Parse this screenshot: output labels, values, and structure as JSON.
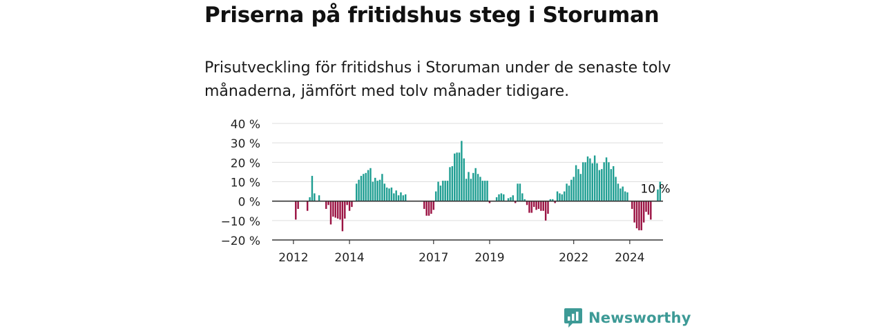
{
  "title": "Priserna på fritidshus steg i Storuman",
  "subtitle": "Prisutveckling för fritidshus i Storuman under de senaste tolv månaderna, jämfört med tolv månader tidigare.",
  "brand": {
    "name": "Newsworthy",
    "icon": "newsworthy-logo-icon"
  },
  "colors": {
    "positive": "#1f9e92",
    "negative": "#9b1444",
    "brand": "#3d9a96"
  },
  "chart_data": {
    "type": "bar",
    "title": "Priserna på fritidshus steg i Storuman",
    "xlabel": "",
    "ylabel": "",
    "ylim": [
      -20,
      40
    ],
    "yticks": [
      40,
      30,
      20,
      10,
      0,
      -10,
      -20
    ],
    "ytick_labels": [
      "40 %",
      "30 %",
      "20 %",
      "10 %",
      "0 %",
      "−10 %",
      "−20 %"
    ],
    "x_start": "2011-11",
    "frequency": "monthly",
    "xticks": [
      {
        "label": "2012",
        "date": "2012-06"
      },
      {
        "label": "2014",
        "date": "2014-06"
      },
      {
        "label": "2017",
        "date": "2017-06"
      },
      {
        "label": "2019",
        "date": "2019-06"
      },
      {
        "label": "2022",
        "date": "2022-06"
      },
      {
        "label": "2024",
        "date": "2024-06"
      }
    ],
    "annotation": {
      "text": "10 %",
      "date": "2025-05"
    },
    "values": [
      null,
      null,
      null,
      null,
      null,
      null,
      null,
      null,
      -9.5,
      -4,
      null,
      null,
      null,
      -5,
      2,
      13,
      4,
      null,
      3,
      null,
      null,
      -4,
      -2,
      -12,
      -8,
      -8.5,
      -9,
      -9.5,
      -15.5,
      -9,
      -2,
      -5,
      -3,
      null,
      9,
      11,
      13,
      14,
      14.5,
      16,
      17,
      10,
      12,
      10.5,
      11,
      14,
      9,
      7,
      6.5,
      7,
      4,
      5.5,
      3,
      4.5,
      3,
      3.5,
      null,
      null,
      null,
      null,
      null,
      null,
      null,
      -4,
      -7.5,
      -7.5,
      -6.5,
      -4.5,
      5,
      10,
      8,
      10.5,
      10.5,
      10.5,
      17.5,
      18,
      24.5,
      25,
      25,
      31,
      22,
      11.5,
      15,
      11.5,
      14.5,
      17,
      14,
      12.5,
      10.5,
      10.5,
      10.5,
      -1,
      null,
      null,
      2,
      3.5,
      4,
      3.5,
      null,
      1.5,
      2,
      3,
      -1,
      9,
      9,
      4,
      1,
      -2,
      -6,
      -6,
      -3,
      -4.5,
      -4,
      -5,
      -5,
      -10,
      -6.5,
      1,
      1,
      -1,
      5,
      4,
      3.5,
      5,
      9,
      8,
      11,
      12.5,
      18.5,
      16.5,
      14,
      20,
      20,
      23,
      22,
      19.5,
      23.5,
      19.5,
      16,
      16.5,
      20,
      22.5,
      20,
      16.5,
      18,
      12.5,
      9,
      6.5,
      7.5,
      5,
      4.5,
      null,
      -4,
      -11,
      -14,
      -15,
      -15,
      -11,
      -5.5,
      -7,
      -9.5,
      null,
      null,
      6,
      10
    ]
  }
}
